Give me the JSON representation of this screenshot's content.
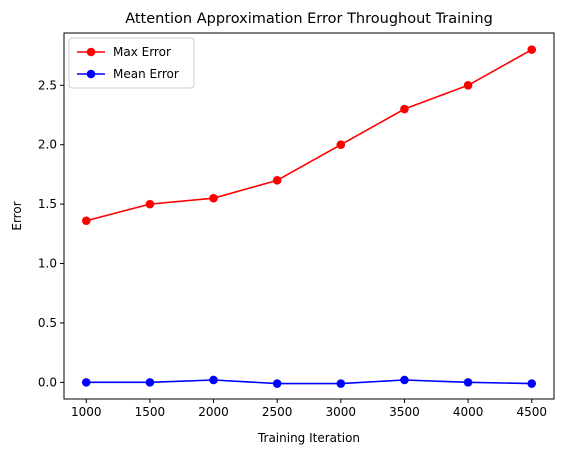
{
  "chart_data": {
    "type": "line",
    "title": "Attention Approximation Error Throughout Training",
    "xlabel": "Training Iteration",
    "ylabel": "Error",
    "x": [
      1000,
      1500,
      2000,
      2500,
      3000,
      3500,
      4000,
      4500
    ],
    "xticks": [
      1000,
      1500,
      2000,
      2500,
      3000,
      3500,
      4000,
      4500
    ],
    "xtick_labels": [
      "1000",
      "1500",
      "2000",
      "2500",
      "3000",
      "3500",
      "4000",
      "4500"
    ],
    "yticks": [
      0.0,
      0.5,
      1.0,
      1.5,
      2.0,
      2.5
    ],
    "ytick_labels": [
      "0.0",
      "0.5",
      "1.0",
      "1.5",
      "2.0",
      "2.5"
    ],
    "xlim": [
      825,
      4675
    ],
    "ylim": [
      -0.14,
      2.94
    ],
    "grid": false,
    "legend_position": "top-left",
    "series": [
      {
        "name": "Max Error",
        "color": "#ff0000",
        "marker": "circle",
        "values": [
          1.36,
          1.5,
          1.55,
          1.7,
          2.0,
          2.3,
          2.5,
          2.8
        ]
      },
      {
        "name": "Mean Error",
        "color": "#0000ff",
        "marker": "circle",
        "values": [
          0.0,
          0.0,
          0.02,
          -0.01,
          -0.01,
          0.02,
          0.0,
          -0.01
        ]
      }
    ]
  }
}
